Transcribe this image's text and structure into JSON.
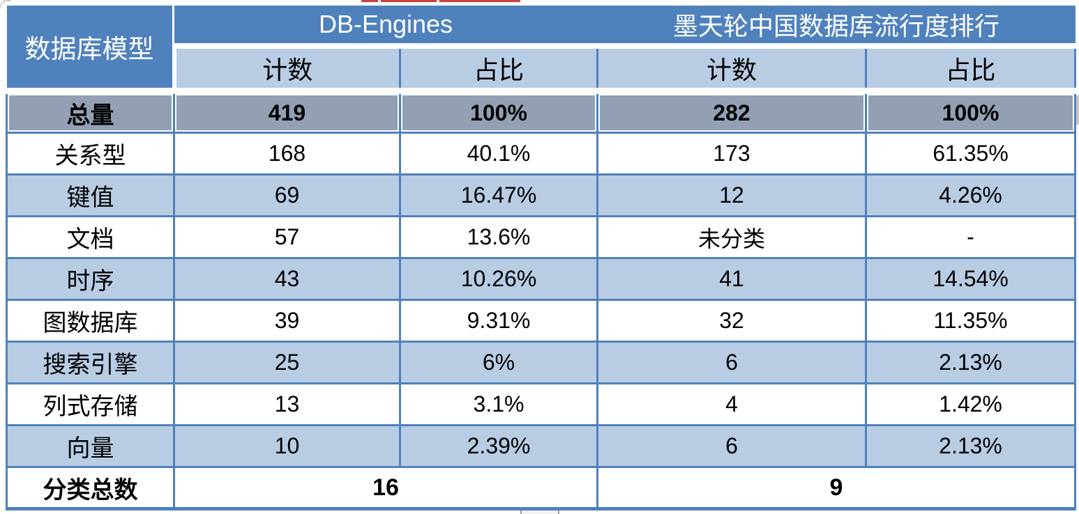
{
  "colors": {
    "header_blue": "#4f81bd",
    "subheader_light_blue": "#b8cce4",
    "total_row_gray": "#93a0b3",
    "alt_row_blue": "#b8cce4",
    "border_blue": "#4f81bd",
    "header_text": "#ffffff",
    "body_text": "#000000",
    "red_artifact": "#c9413e"
  },
  "chart_data": {
    "type": "table",
    "corner_header": "数据库模型",
    "column_groups": [
      {
        "label": "DB-Engines",
        "columns": [
          "计数",
          "占比"
        ]
      },
      {
        "label": "墨天轮中国数据库流行度排行",
        "columns": [
          "计数",
          "占比"
        ]
      }
    ],
    "total_row": {
      "label": "总量",
      "values": [
        "419",
        "100%",
        "282",
        "100%"
      ]
    },
    "rows": [
      {
        "label": "关系型",
        "values": [
          "168",
          "40.1%",
          "173",
          "61.35%"
        ]
      },
      {
        "label": "键值",
        "values": [
          "69",
          "16.47%",
          "12",
          "4.26%"
        ]
      },
      {
        "label": "文档",
        "values": [
          "57",
          "13.6%",
          "未分类",
          "-"
        ]
      },
      {
        "label": "时序",
        "values": [
          "43",
          "10.26%",
          "41",
          "14.54%"
        ]
      },
      {
        "label": "图数据库",
        "values": [
          "39",
          "9.31%",
          "32",
          "11.35%"
        ]
      },
      {
        "label": "搜索引擎",
        "values": [
          "25",
          "6%",
          "6",
          "2.13%"
        ]
      },
      {
        "label": "列式存储",
        "values": [
          "13",
          "3.1%",
          "4",
          "1.42%"
        ]
      },
      {
        "label": "向量",
        "values": [
          "10",
          "2.39%",
          "6",
          "2.13%"
        ]
      }
    ],
    "footer_row": {
      "label": "分类总数",
      "values": [
        "16",
        "9"
      ]
    }
  }
}
